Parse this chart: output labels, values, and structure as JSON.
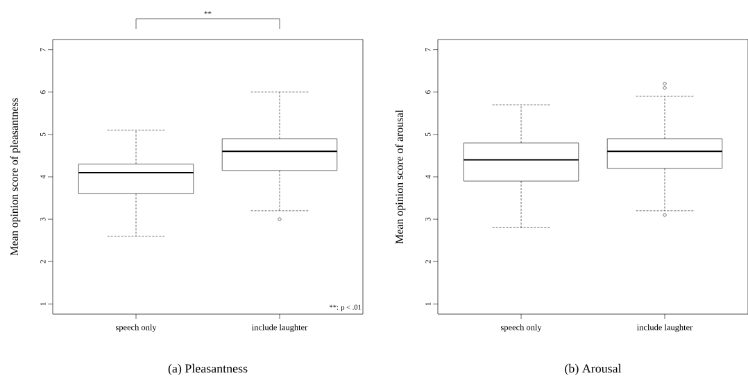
{
  "chart_data": [
    {
      "type": "box",
      "title": "(a) Pleasantness",
      "ylabel": "Mean opinion score of pleasantness",
      "categories": [
        "speech only",
        "include laughter"
      ],
      "boxes": [
        {
          "low": 2.6,
          "q1": 3.6,
          "median": 4.1,
          "q3": 4.3,
          "high": 5.1
        },
        {
          "low": 3.2,
          "q1": 4.15,
          "median": 4.6,
          "q3": 4.9,
          "high": 6.0,
          "outliers": [
            3.0
          ]
        }
      ],
      "ylim": [
        0.76,
        7.24
      ],
      "yticks": [
        1,
        2,
        3,
        4,
        5,
        6,
        7
      ],
      "annotations": [
        "**",
        "**: p < .01"
      ]
    },
    {
      "type": "box",
      "title": "(b) Arousal",
      "ylabel": "Mean opinion score of arousal",
      "categories": [
        "speech only",
        "include laughter"
      ],
      "boxes": [
        {
          "low": 2.8,
          "q1": 3.9,
          "median": 4.4,
          "q3": 4.8,
          "high": 5.7
        },
        {
          "low": 3.2,
          "q1": 4.2,
          "median": 4.6,
          "q3": 4.9,
          "high": 5.9,
          "outliers": [
            6.1,
            6.2,
            3.1
          ]
        }
      ],
      "ylim": [
        0.76,
        7.24
      ],
      "yticks": [
        1,
        2,
        3,
        4,
        5,
        6,
        7
      ]
    }
  ]
}
